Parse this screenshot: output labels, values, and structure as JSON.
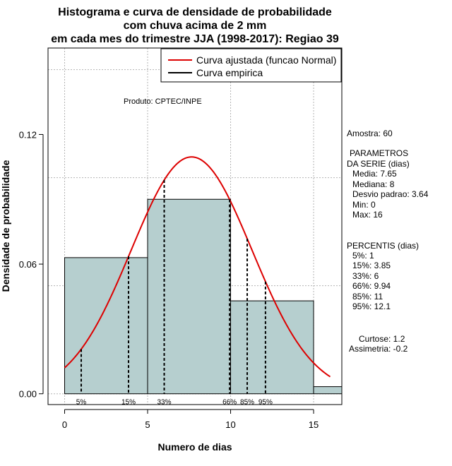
{
  "chart_data": {
    "type": "bar",
    "title_lines": [
      "Histograma e curva de densidade de probabilidade",
      "com chuva acima de 2 mm",
      "em cada mes do trimestre JJA (1998-2017): Regiao 39"
    ],
    "xlabel": "Numero de dias",
    "ylabel": "Densidade de probabilidade",
    "xlim": [
      -1,
      16.7
    ],
    "ylim": [
      -0.005,
      0.16
    ],
    "xticks": [
      0,
      5,
      10,
      15
    ],
    "xtick_labels": [
      "0",
      "5",
      "10",
      "15"
    ],
    "yticks": [
      0.0,
      0.06,
      0.12
    ],
    "ytick_labels": [
      "0.00",
      "0.06",
      "0.12"
    ],
    "grid": true,
    "histogram": {
      "bins": [
        {
          "from": 0,
          "to": 5,
          "density": 0.063
        },
        {
          "from": 5,
          "to": 10,
          "density": 0.09
        },
        {
          "from": 10,
          "to": 15,
          "density": 0.043
        },
        {
          "from": 15,
          "to": 16.7,
          "density": 0.0033
        }
      ],
      "fill": "#b6cfcf"
    },
    "normal_curve": {
      "name": "Curva ajustada (funcao Normal)",
      "mean": 7.65,
      "sd": 3.64,
      "x_range": [
        0,
        16
      ],
      "color": "#dd0000"
    },
    "percentile_lines": [
      {
        "label": "5%",
        "x": 1
      },
      {
        "label": "15%",
        "x": 3.85
      },
      {
        "label": "33%",
        "x": 6
      },
      {
        "label": "66%",
        "x": 9.94
      },
      {
        "label": "85%",
        "x": 11
      },
      {
        "label": "95%",
        "x": 12.1
      }
    ],
    "legend": {
      "position": "top-right",
      "items": [
        {
          "label": "Curva ajustada (funcao Normal)",
          "color": "#dd0000"
        },
        {
          "label": "Curva empirica",
          "color": "#000000"
        }
      ]
    },
    "annotation": "Produto: CPTEC/INPE",
    "side_panel": {
      "amostra": "Amostra: 60",
      "param_title_1": "PARAMETROS",
      "param_title_2": "DA SERIE (dias)",
      "params": [
        "Media: 7.65",
        "Mediana: 8",
        "Desvio padrao: 3.64",
        "Min: 0",
        "Max: 16"
      ],
      "percentis_title": "PERCENTIS (dias)",
      "percentis": [
        "5%: 1",
        "15%: 3.85",
        "33%: 6",
        "66%: 9.94",
        "85%: 11",
        "95%: 12.1"
      ],
      "curtose": "Curtose: 1.2",
      "assimetria": "Assimetria: -0.2"
    }
  }
}
